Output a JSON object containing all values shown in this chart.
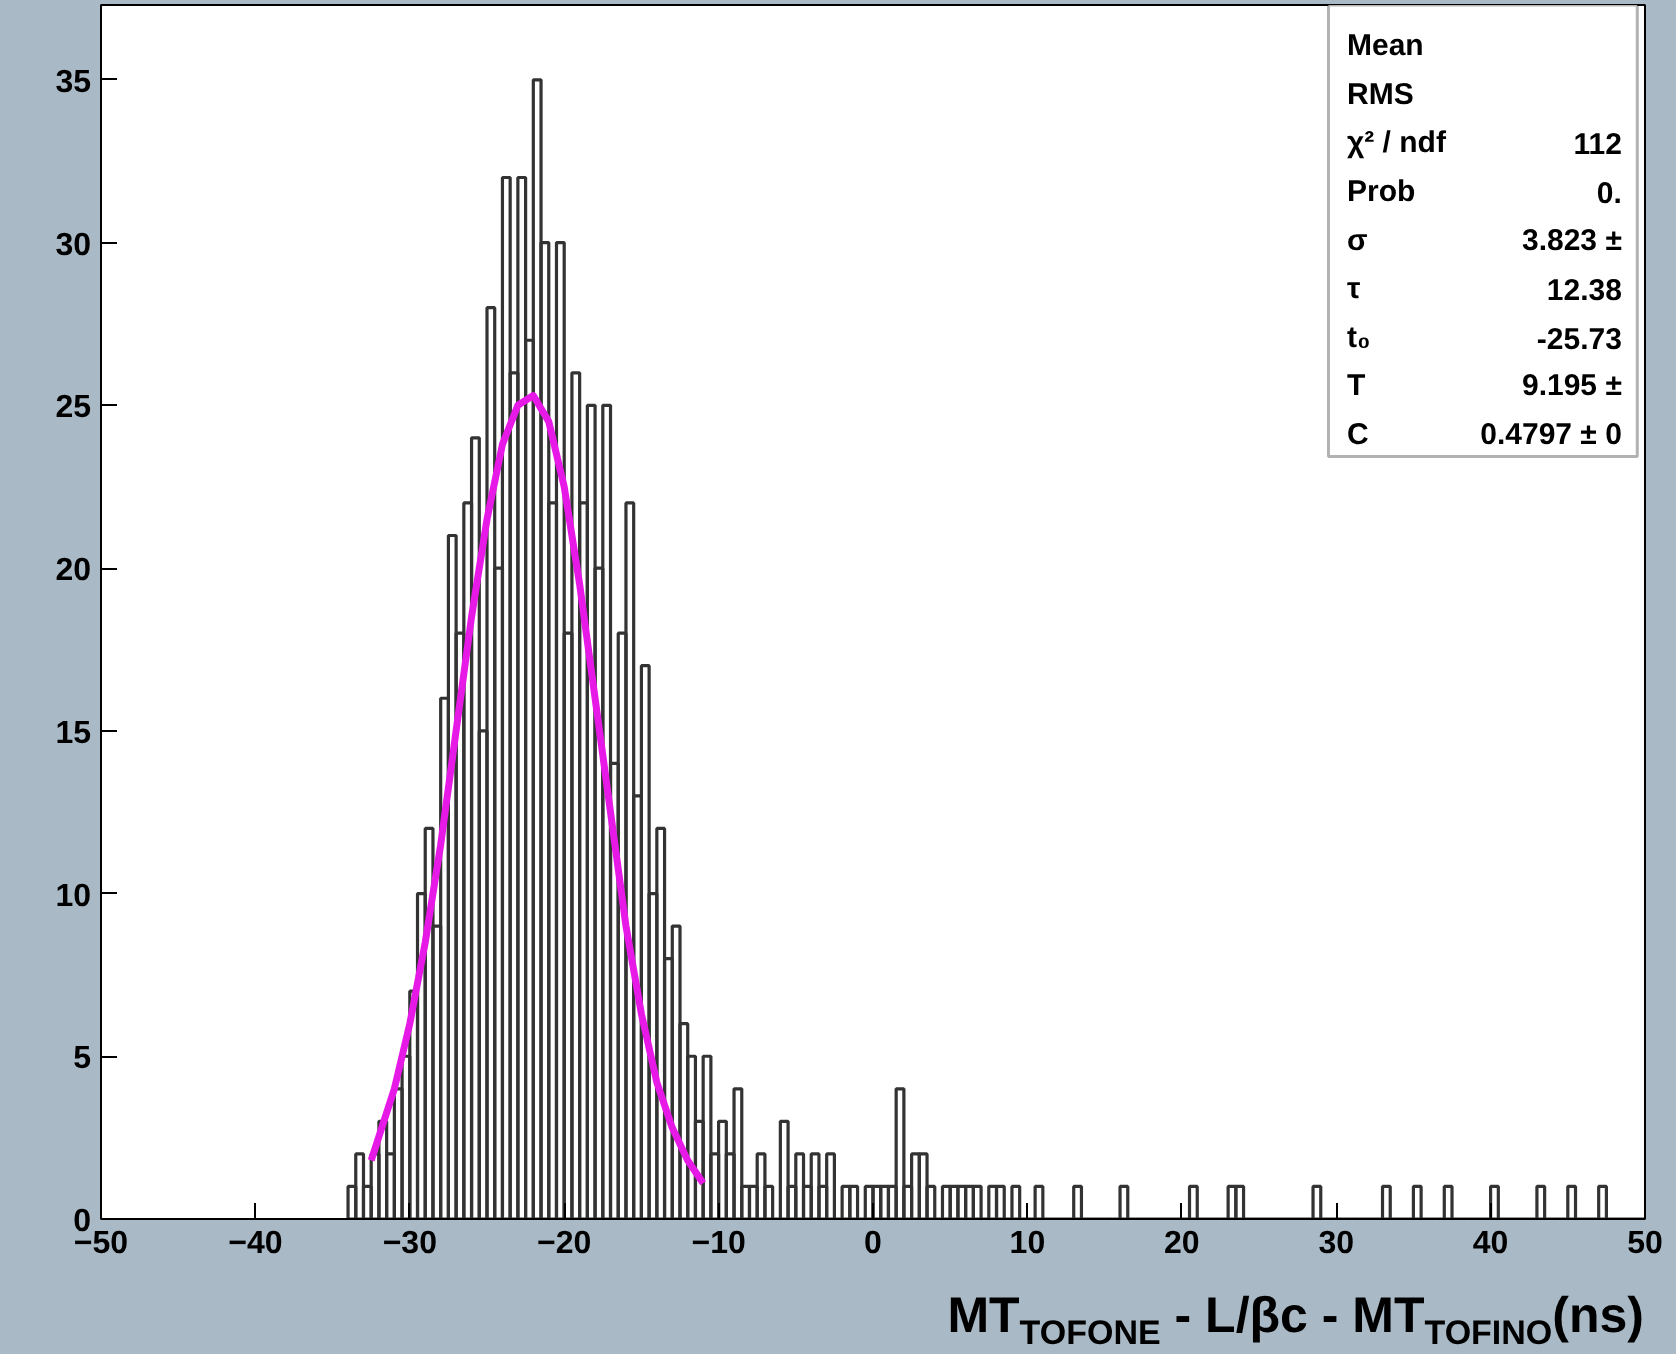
{
  "chart_data": {
    "type": "histogram",
    "xlabel": "MT$_{TOFONE}$ - L/βc - MT$_{TOFINO}$(ns)",
    "xlim": [
      -50,
      50
    ],
    "ylim": [
      0,
      37.3
    ],
    "xticks": [
      -50,
      -40,
      -30,
      -20,
      -10,
      0,
      10,
      20,
      30,
      40,
      50
    ],
    "yticks": [
      0,
      5,
      10,
      15,
      20,
      25,
      30,
      35
    ],
    "grid": false,
    "annotations": [
      "Mean",
      "RMS",
      "χ² / ndf",
      "112",
      "Prob",
      "0.",
      "σ",
      "3.823 ±",
      "τ",
      "12.38",
      "t₀",
      "-25.73",
      "T",
      "9.195 ±",
      "C",
      "0.4797 ± 0"
    ],
    "series": [
      {
        "color": "#333333",
        "bins": [
          -34,
          -33.5,
          -33,
          -32.5,
          -32,
          -31.5,
          -31,
          -30.5,
          -30,
          -29.5,
          -29,
          -28.5,
          -28,
          -27.5,
          -27,
          -26.5,
          -26,
          -25.5,
          -25,
          -24.5,
          -24,
          -23.5,
          -23,
          -22.5,
          -22,
          -21.5,
          -21,
          -20.5,
          -20,
          -19.5,
          -19,
          -18.5,
          -18,
          -17.5,
          -17,
          -16.5,
          -16,
          -15.5,
          -15,
          -14.5,
          -14,
          -13.5,
          -13,
          -12.5,
          -12,
          -11.5,
          -11,
          -10.5,
          -10,
          -9.5,
          -9,
          -8.5,
          -8,
          -7.5,
          -7,
          -6.5,
          -6,
          -5.5,
          -5,
          -4.5,
          -4,
          -3.5,
          -3,
          -2.5,
          -2,
          -1.5,
          -1,
          -0.5,
          0,
          0.5,
          1,
          1.5,
          2,
          2.5,
          3,
          3.5,
          4,
          4.5,
          5,
          5.5,
          6,
          6.5,
          7,
          7.5,
          8,
          8.5,
          9,
          9.5,
          10,
          10.5,
          11,
          11.5,
          12,
          12.5,
          13,
          13.5,
          14,
          14.5,
          15,
          15.5,
          16,
          16.5,
          17,
          17.5,
          18,
          18.5,
          19,
          19.5,
          20,
          20.5,
          21,
          21.5,
          22,
          22.5,
          23,
          23.5,
          24,
          24.5,
          25,
          25.5,
          26,
          26.5,
          27,
          27.5,
          28,
          28.5,
          29,
          29.5,
          30,
          30.5,
          31,
          31.5,
          32,
          32.5,
          33,
          33.5,
          34,
          34.5,
          35,
          35.5,
          36,
          36.5,
          37,
          37.5,
          38,
          38.5,
          39,
          39.5,
          40,
          40.5,
          41,
          41.5,
          42,
          42.5,
          43,
          43.5,
          44,
          44.5,
          45,
          45.5,
          46,
          46.5,
          47,
          47.5,
          48,
          48.5,
          49,
          49.5,
          50
        ],
        "values": [
          1,
          2,
          1,
          2,
          3,
          2,
          4,
          5,
          7,
          10,
          12,
          9,
          16,
          21,
          18,
          22,
          24,
          15,
          28,
          20,
          32,
          26,
          32,
          27,
          35,
          30,
          22,
          30,
          18,
          26,
          22,
          25,
          20,
          25,
          14,
          18,
          22,
          13,
          17,
          10,
          12,
          8,
          9,
          6,
          5,
          3,
          5,
          2,
          3,
          2,
          4,
          1,
          1,
          2,
          1,
          0,
          3,
          1,
          2,
          1,
          2,
          1,
          2,
          0,
          1,
          1,
          0,
          1,
          1,
          1,
          1,
          4,
          1,
          2,
          2,
          1,
          0,
          1,
          1,
          1,
          1,
          1,
          0,
          1,
          1,
          0,
          1,
          0,
          0,
          1,
          0,
          0,
          0,
          0,
          1,
          0,
          0,
          0,
          0,
          0,
          1,
          0,
          0,
          0,
          0,
          0,
          0,
          0,
          0,
          1,
          0,
          0,
          0,
          0,
          1,
          1,
          0,
          0,
          0,
          0,
          0,
          0,
          0,
          0,
          0,
          1,
          0,
          0,
          0,
          0,
          0,
          0,
          0,
          0,
          1,
          0,
          0,
          0,
          1,
          0,
          0,
          0,
          1,
          0,
          0,
          0,
          0,
          0,
          1,
          0,
          0,
          0,
          0,
          0,
          1,
          0,
          0,
          0,
          1,
          0,
          0,
          0,
          1,
          0,
          0,
          0,
          0,
          0
        ]
      },
      {
        "type": "line",
        "color": "#e619e6",
        "x": [
          -32.5,
          -31,
          -30,
          -29,
          -28,
          -27,
          -26,
          -25,
          -24,
          -23,
          -22,
          -21,
          -20,
          -19,
          -18,
          -17,
          -16,
          -15,
          -14,
          -13,
          -12,
          -11
        ],
        "values": [
          1.8,
          4,
          6,
          8.5,
          11.5,
          15,
          18.5,
          21.5,
          23.8,
          25,
          25.3,
          24.5,
          22.5,
          19.5,
          16,
          12.5,
          9,
          6.3,
          4.2,
          2.8,
          1.8,
          1.1
        ]
      }
    ]
  }
}
